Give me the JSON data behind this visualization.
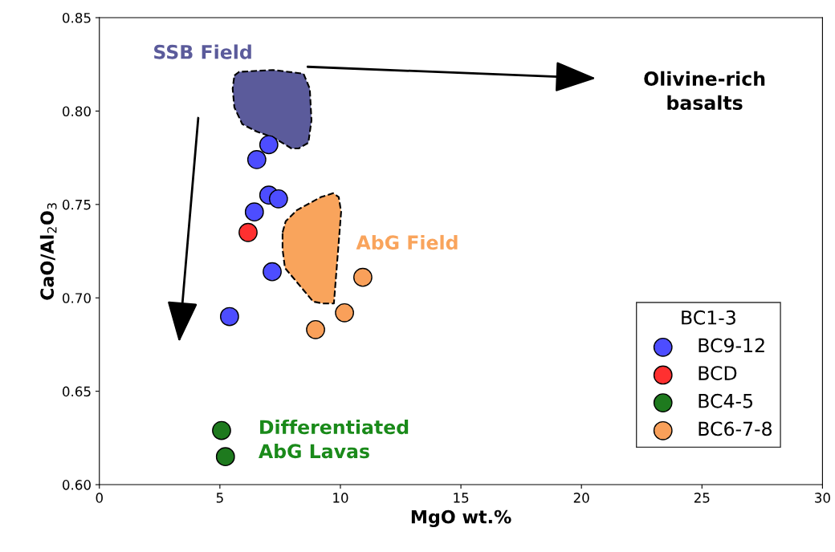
{
  "chart_data": {
    "type": "scatter",
    "xlabel": "MgO wt.%",
    "ylabel": "CaO/Al$_{2}$O$_{3}$",
    "xlim": [
      0,
      30
    ],
    "xticks": [
      0,
      5,
      10,
      15,
      20,
      25,
      30
    ],
    "ylim": [
      0.6,
      0.85
    ],
    "yticks": [
      {
        "value": 0.6,
        "label": "0.60"
      },
      {
        "value": 0.65,
        "label": "0.65"
      },
      {
        "value": 0.7,
        "label": "0.70"
      },
      {
        "value": 0.75,
        "label": "0.75"
      },
      {
        "value": 0.8,
        "label": "0.80"
      },
      {
        "value": 0.85,
        "label": "0.85"
      }
    ],
    "grid": false,
    "legend": "bottom right",
    "legend_title": "BC1-3",
    "series": [
      {
        "type": "area",
        "name": "SSB Field",
        "color": "#5b5b9b",
        "line_style": "dashed",
        "x": [
          5.6,
          5.8,
          7.2,
          8.47,
          8.73,
          8.8,
          8.67,
          8.27,
          7.97,
          7.2,
          6.53,
          5.93,
          5.6,
          5.53
        ],
        "values": [
          0.819,
          0.821,
          0.822,
          0.82,
          0.812,
          0.795,
          0.783,
          0.78,
          0.78,
          0.786,
          0.789,
          0.793,
          0.802,
          0.812
        ]
      },
      {
        "type": "area",
        "name": "AbG Field",
        "color": "#f9a45c",
        "line_style": "dashed",
        "x": [
          7.6,
          7.73,
          8.2,
          9.2,
          9.7,
          9.93,
          10.03,
          9.73,
          9.27,
          8.87,
          7.7,
          7.6
        ],
        "values": [
          0.735,
          0.741,
          0.747,
          0.754,
          0.756,
          0.754,
          0.746,
          0.697,
          0.697,
          0.698,
          0.716,
          0.726
        ]
      },
      {
        "name": "BC9-12",
        "marker": "circle",
        "color": "#4d4dff",
        "x": [
          7.03,
          6.53,
          7.03,
          7.43,
          6.43,
          7.17,
          5.4
        ],
        "values": [
          0.782,
          0.774,
          0.755,
          0.753,
          0.746,
          0.714,
          0.69
        ]
      },
      {
        "name": "BCD",
        "marker": "circle",
        "color": "#ff3030",
        "x": [
          6.17
        ],
        "values": [
          0.735
        ]
      },
      {
        "name": "BC4-5",
        "marker": "circle",
        "color": "#1e7a1e",
        "x": [
          5.07,
          5.23
        ],
        "values": [
          0.629,
          0.615
        ]
      },
      {
        "name": "BC6-7-8",
        "marker": "circle",
        "color": "#f9a05a",
        "x": [
          10.93,
          10.17,
          8.97
        ],
        "values": [
          0.711,
          0.692,
          0.683
        ]
      }
    ],
    "annotations": [
      "Olivine-rich\nbasalts",
      "Differentiated\nAbG Lavas"
    ]
  }
}
